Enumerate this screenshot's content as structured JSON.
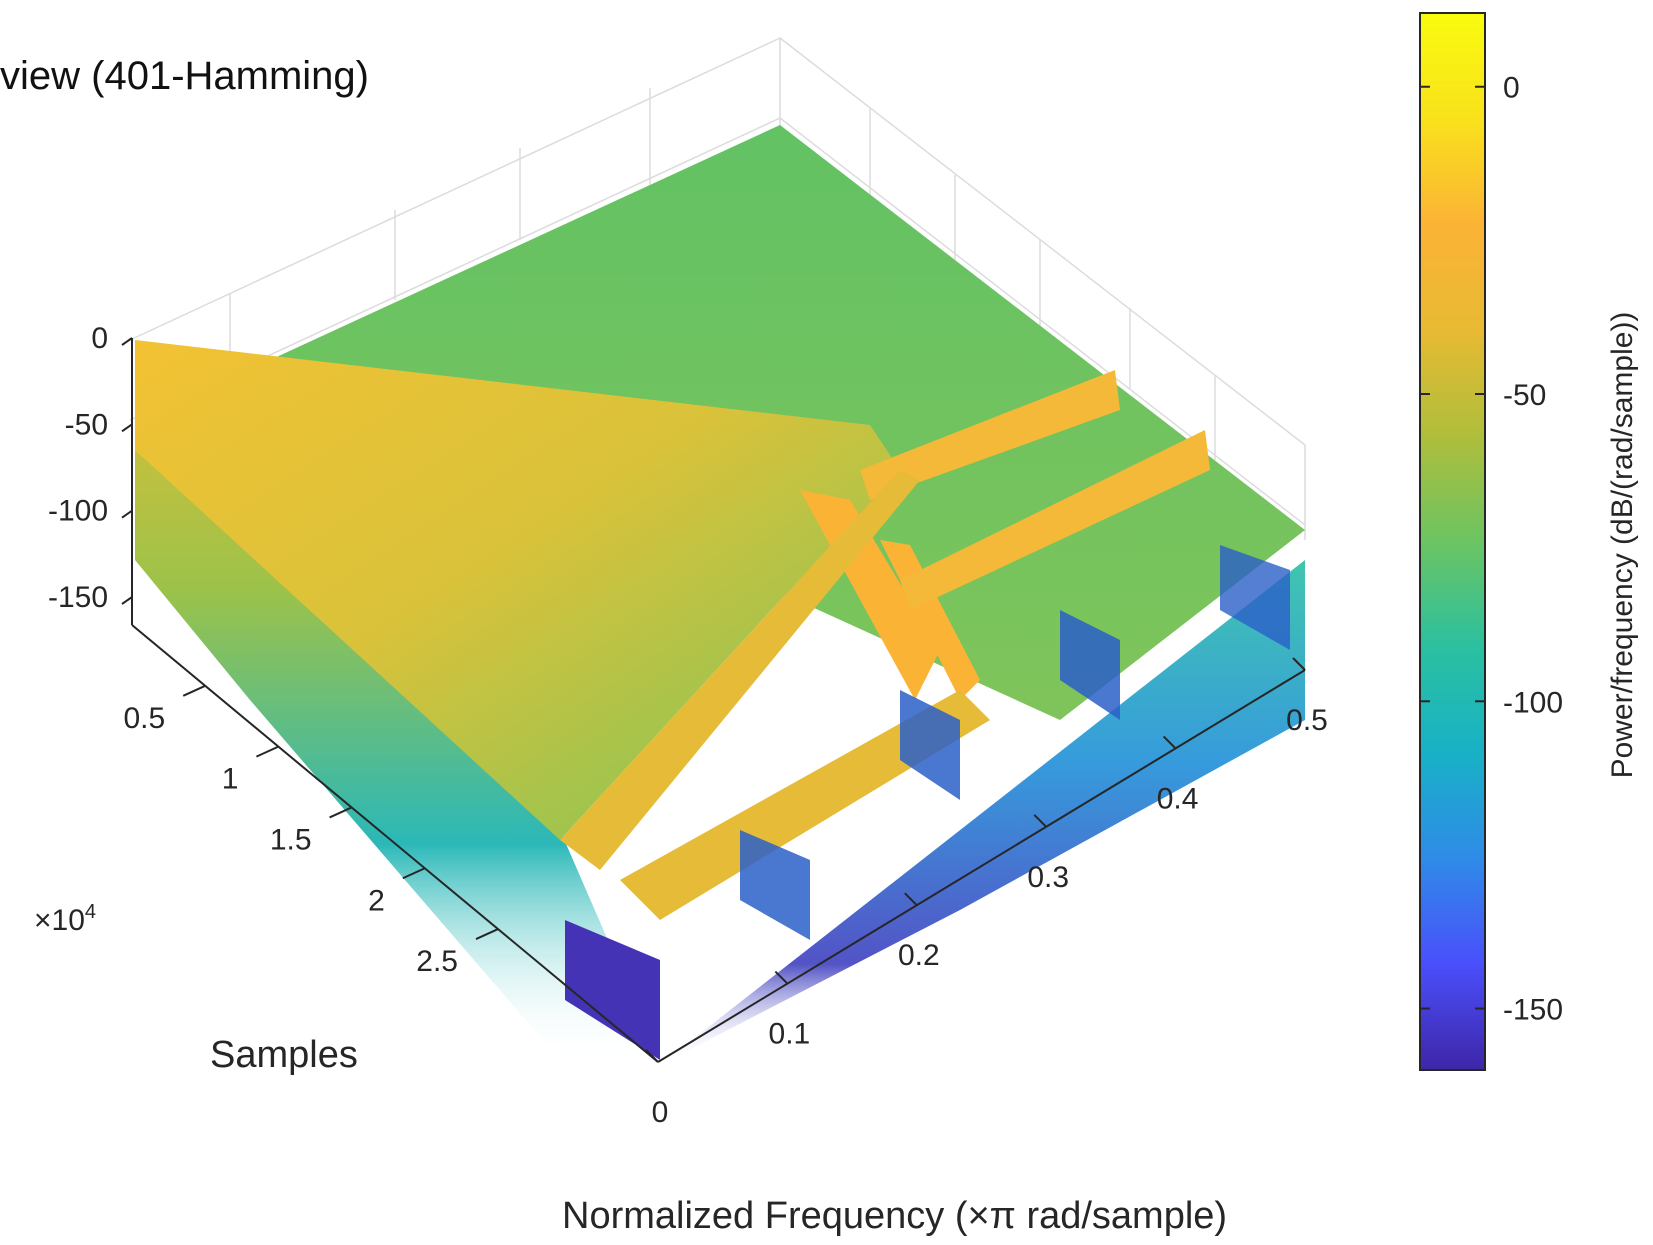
{
  "chart_data": {
    "type": "surface",
    "title": "",
    "subtitle": "view (401-Hamming)",
    "xlabel": "Normalized Frequency  (×π rad/sample)",
    "ylabel": "Samples",
    "y_exponent": "×10",
    "y_exponent_power": "4",
    "zlim": [
      -150,
      0
    ],
    "xlim": [
      0,
      0.5
    ],
    "ylim": [
      0,
      2.5
    ],
    "x_ticks": [
      "0",
      "0.1",
      "0.2",
      "0.3",
      "0.4",
      "0.5"
    ],
    "y_ticks": [
      "0.5",
      "1",
      "1.5",
      "2",
      "2.5"
    ],
    "z_ticks": [
      "0",
      "-50",
      "-100",
      "-150"
    ],
    "grid": true,
    "colorbar": {
      "label": "Power/frequency (dB/(rad/sample))",
      "ticks": [
        "0",
        "-50",
        "-100",
        "-150"
      ],
      "range": [
        -160,
        12
      ],
      "colormap": [
        "#3e26a8",
        "#4a4ffb",
        "#2f8be8",
        "#18b1c6",
        "#2bc0a0",
        "#6cc462",
        "#afbe3b",
        "#e8ba33",
        "#fbb335",
        "#f9e21c",
        "#f9fb0e"
      ]
    },
    "series": [
      {
        "values": [
          0
        ]
      }
    ]
  }
}
